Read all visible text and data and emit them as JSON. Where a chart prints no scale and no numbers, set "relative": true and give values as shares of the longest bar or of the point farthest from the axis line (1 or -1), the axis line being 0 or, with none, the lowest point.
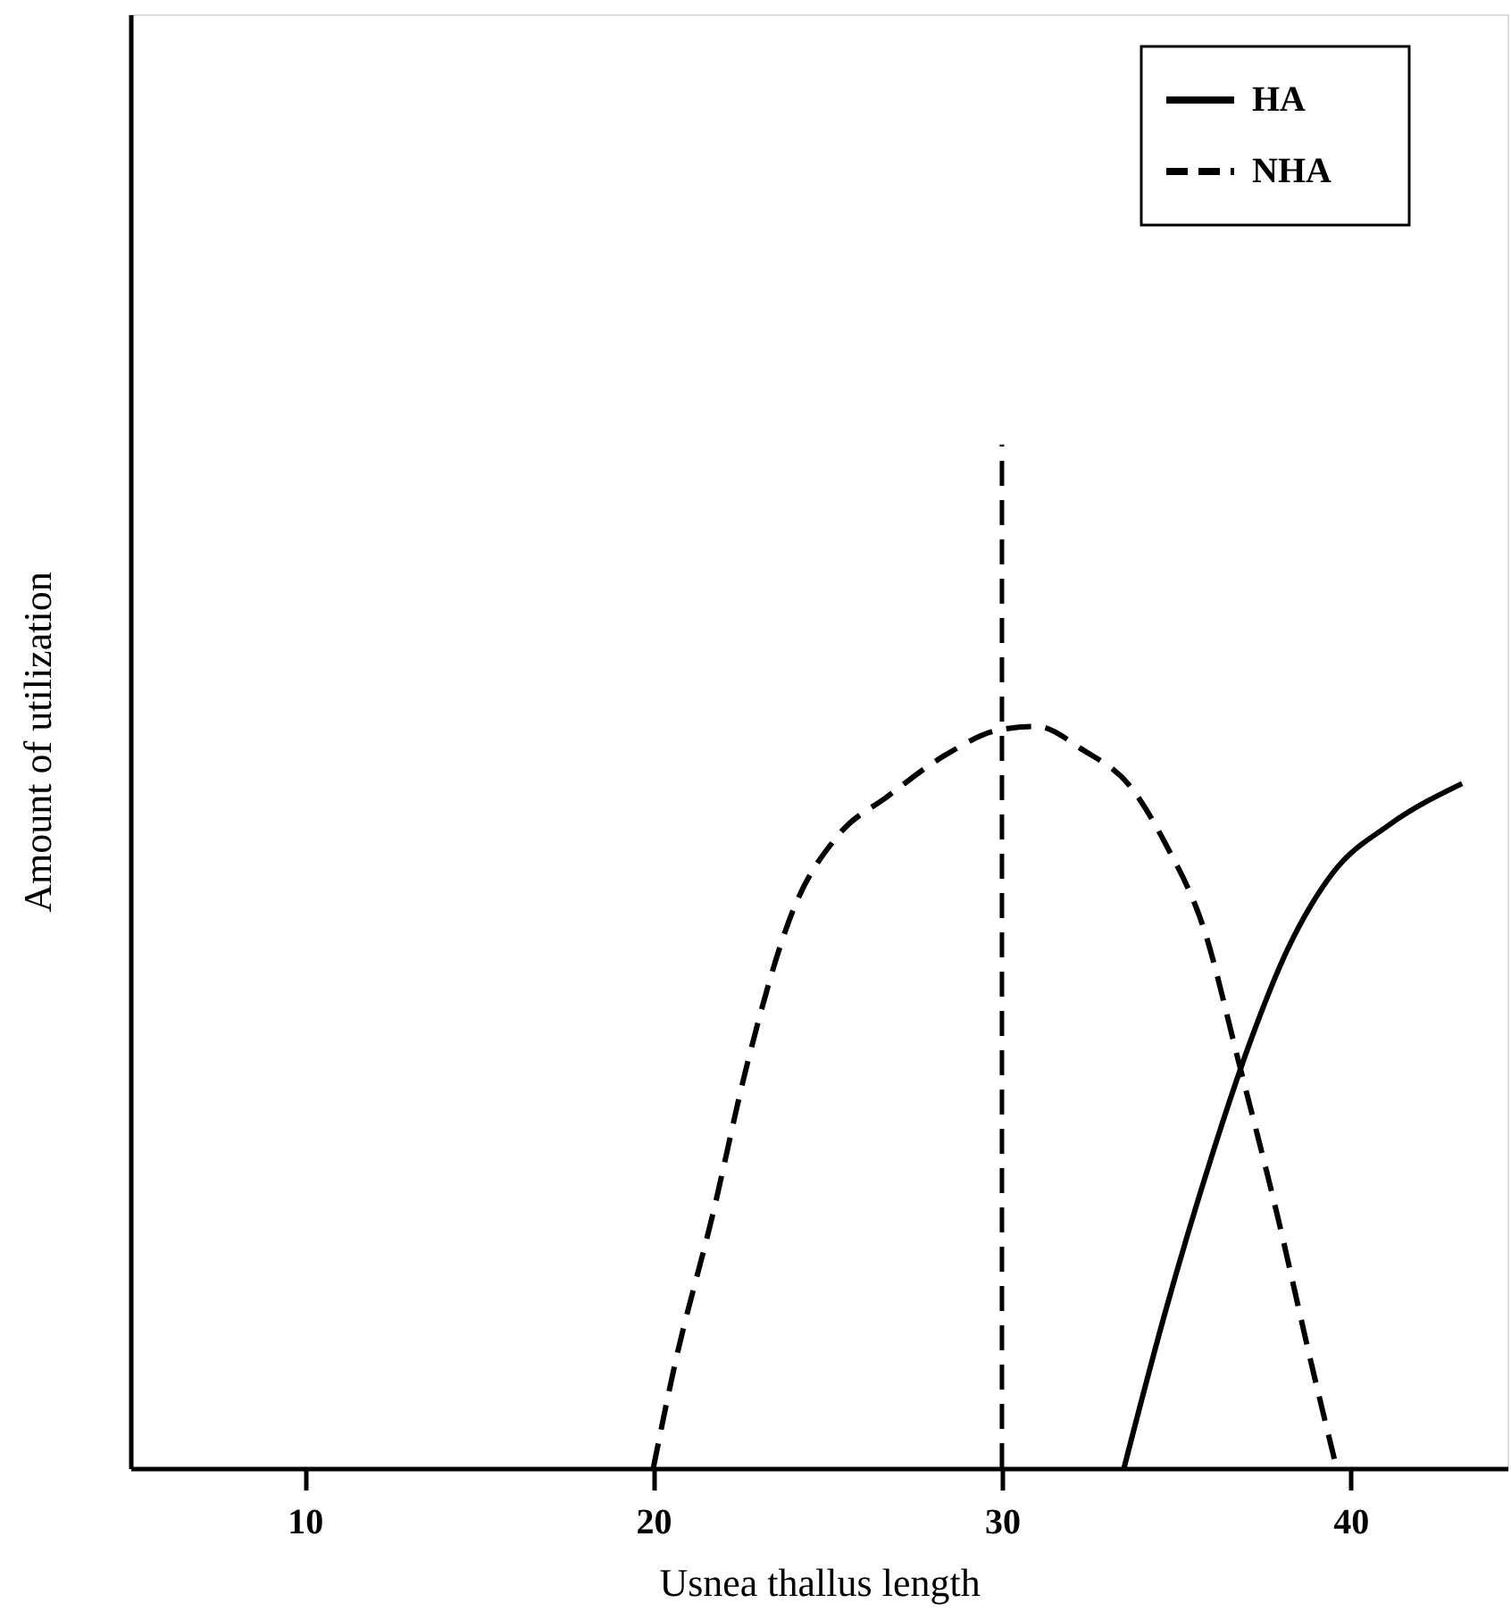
{
  "chart_data": {
    "type": "line",
    "relative": true,
    "xlabel": "Usnea thallus length",
    "ylabel": "Amount of utilization",
    "xlim": [
      5,
      44.5
    ],
    "xticks": [
      10,
      20,
      30,
      40
    ],
    "grid": false,
    "legend": "top right",
    "marker": "none",
    "series": [
      {
        "name": "HA",
        "color": "#000000",
        "line_style": "solid",
        "x": [
          33.5,
          34.7,
          36.0,
          37.1,
          38.2,
          39.5,
          41.1,
          43.2
        ],
        "values": [
          0,
          0.213,
          0.418,
          0.572,
          0.7,
          0.803,
          0.867,
          0.923
        ]
      },
      {
        "name": "NHA",
        "color": "#000000",
        "line_style": "dashed",
        "x": [
          20.0,
          20.6,
          21.7,
          22.7,
          24.0,
          25.3,
          26.7,
          28.4,
          29.9,
          31.0,
          32.3,
          33.7,
          34.7,
          35.8,
          36.8,
          37.9,
          38.9,
          39.6
        ],
        "values": [
          0,
          0.136,
          0.341,
          0.546,
          0.751,
          0.853,
          0.905,
          0.962,
          0.995,
          1.0,
          0.969,
          0.918,
          0.841,
          0.726,
          0.546,
          0.341,
          0.136,
          0
        ]
      }
    ],
    "ref_lines": [
      {
        "axis": "x",
        "value": 30,
        "label": null,
        "line_style": "dashed",
        "color": "#000000"
      }
    ]
  }
}
